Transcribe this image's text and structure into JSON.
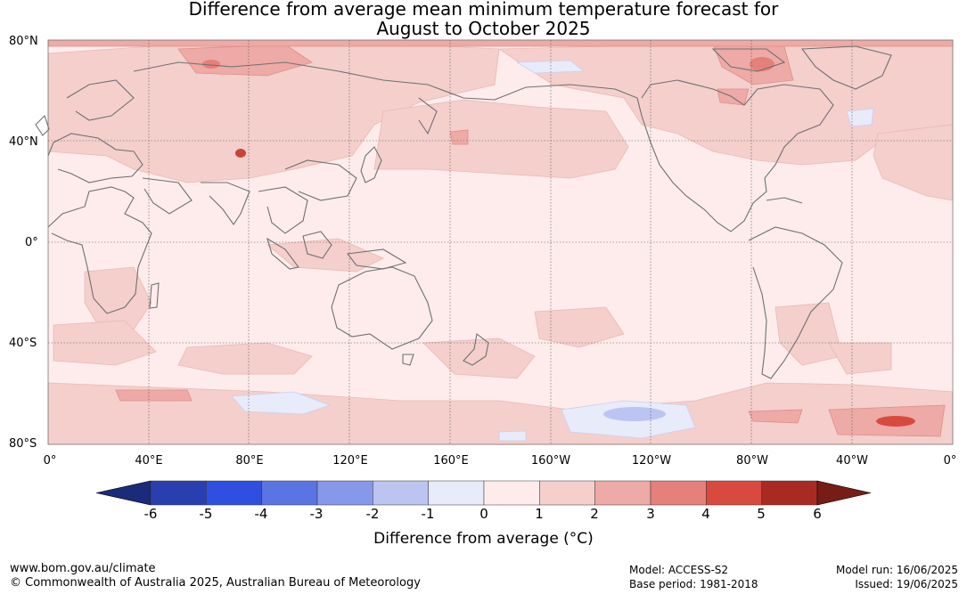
{
  "title": {
    "line1": "Difference from average mean minimum temperature forecast for",
    "line2": "August to October 2025"
  },
  "map": {
    "lat_labels": [
      "80°N",
      "40°N",
      "0°",
      "40°S",
      "80°S"
    ],
    "lon_labels": [
      "0°",
      "40°E",
      "80°E",
      "120°E",
      "160°E",
      "160°W",
      "120°W",
      "80°W",
      "40°W",
      "0°"
    ],
    "background_color": "#fdeceb"
  },
  "colorbar": {
    "ticks": [
      "-6",
      "-5",
      "-4",
      "-3",
      "-2",
      "-1",
      "0",
      "1",
      "2",
      "3",
      "4",
      "5",
      "6"
    ],
    "colors": [
      "#2a3fae",
      "#2f4fe0",
      "#5a74e4",
      "#8698ea",
      "#bcc4f2",
      "#e8ebfa",
      "#fdeceb",
      "#f4cfcc",
      "#edaaa6",
      "#e6807a",
      "#d84a40",
      "#a82a22"
    ],
    "low_extend_color": "#1b2b7a",
    "high_extend_color": "#771c16",
    "label": "Difference from average (°C)"
  },
  "footer": {
    "site": "www.bom.gov.au/climate",
    "copyright": "© Commonwealth of Australia 2025, Australian Bureau of Meteorology",
    "model": "Model: ACCESS-S2",
    "base_period": "Base period: 1981-2018",
    "model_run": "Model run: 16/06/2025",
    "issued": "Issued: 19/06/2025"
  }
}
